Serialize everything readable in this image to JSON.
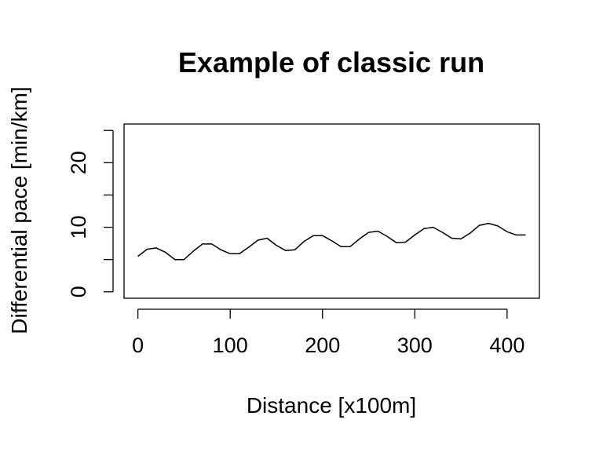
{
  "chart_data": {
    "type": "line",
    "title": "Example of classic run",
    "xlabel": "Distance [x100m]",
    "ylabel": "Differential pace [min/km]",
    "xlim": [
      -15,
      435
    ],
    "ylim": [
      -1,
      26
    ],
    "xticks": [
      0,
      100,
      200,
      300,
      400
    ],
    "xtick_labels": [
      "0",
      "100",
      "200",
      "300",
      "400"
    ],
    "yticks": [
      0,
      5,
      10,
      15,
      20,
      25
    ],
    "ytick_labels": [
      "0",
      "",
      "10",
      "",
      "20",
      ""
    ],
    "grid": false,
    "legend": "none",
    "box": true,
    "line_color": "#000000",
    "series": [
      {
        "x": [
          0,
          10,
          20,
          30,
          40,
          50,
          60,
          70,
          80,
          90,
          100,
          110,
          120,
          130,
          140,
          150,
          160,
          170,
          180,
          190,
          200,
          210,
          220,
          230,
          240,
          250,
          260,
          270,
          280,
          290,
          300,
          310,
          320,
          330,
          340,
          350,
          360,
          370,
          380,
          390,
          400,
          410,
          420
        ],
        "values": [
          5.5,
          6.6,
          6.8,
          6.1,
          5.0,
          5.0,
          6.3,
          7.4,
          7.4,
          6.5,
          5.9,
          5.9,
          6.9,
          8.0,
          8.3,
          7.2,
          6.4,
          6.5,
          7.8,
          8.7,
          8.7,
          7.9,
          7.0,
          7.0,
          8.2,
          9.2,
          9.4,
          8.6,
          7.6,
          7.7,
          8.8,
          9.8,
          10.0,
          9.2,
          8.3,
          8.2,
          9.1,
          10.3,
          10.6,
          10.2,
          9.3,
          8.8,
          8.8
        ]
      }
    ]
  }
}
